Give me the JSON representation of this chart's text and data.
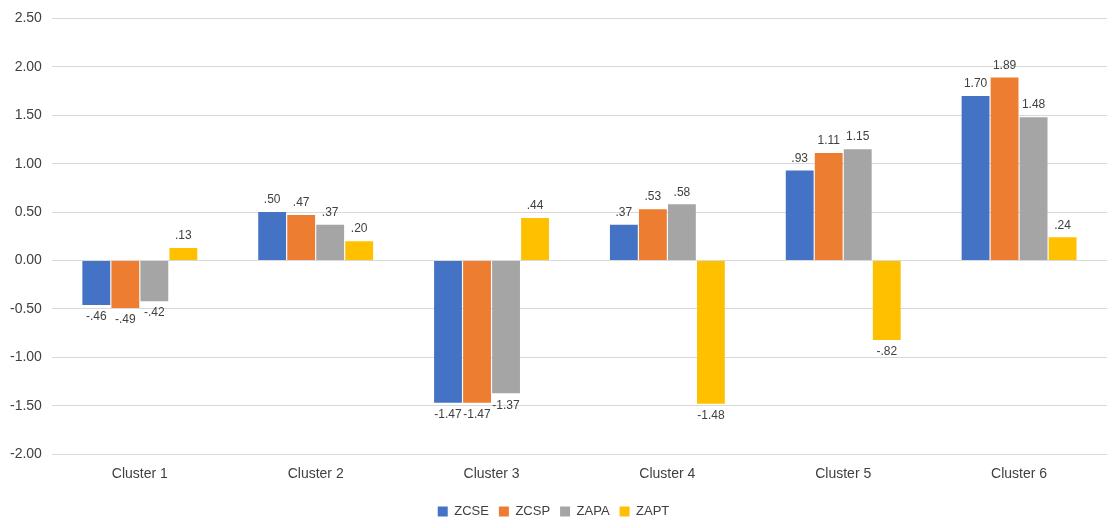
{
  "chart_data": {
    "type": "bar",
    "categories": [
      "Cluster 1",
      "Cluster 2",
      "Cluster 3",
      "Cluster 4",
      "Cluster 5",
      "Cluster 6"
    ],
    "series": [
      {
        "name": "ZCSE",
        "color": "#4472c4",
        "values": [
          -0.46,
          0.5,
          -1.47,
          0.37,
          0.93,
          1.7
        ],
        "value_labels": [
          "-.46",
          ".50",
          "-1.47",
          ".37",
          ".93",
          "1.70"
        ]
      },
      {
        "name": "ZCSP",
        "color": "#ed7d31",
        "values": [
          -0.49,
          0.47,
          -1.47,
          0.53,
          1.11,
          1.89
        ],
        "value_labels": [
          "-.49",
          ".47",
          "-1.47",
          ".53",
          "1.11",
          "1.89"
        ]
      },
      {
        "name": "ZAPA",
        "color": "#a5a5a5",
        "values": [
          -0.42,
          0.37,
          -1.37,
          0.58,
          1.15,
          1.48
        ],
        "value_labels": [
          "-.42",
          ".37",
          "-1.37",
          ".58",
          "1.15",
          "1.48"
        ]
      },
      {
        "name": "ZAPT",
        "color": "#ffc000",
        "values": [
          0.13,
          0.2,
          0.44,
          -1.48,
          -0.82,
          0.24
        ],
        "value_labels": [
          ".13",
          ".20",
          ".44",
          "-1.48",
          "-.82",
          ".24"
        ]
      }
    ],
    "ylim": [
      -2,
      2.5
    ],
    "yticks": [
      {
        "value": -2,
        "label": "-2.00"
      },
      {
        "value": -1.5,
        "label": "-1.50"
      },
      {
        "value": -1,
        "label": "-1.00"
      },
      {
        "value": -0.5,
        "label": "-0.50"
      },
      {
        "value": 0,
        "label": "0.00"
      },
      {
        "value": 0.5,
        "label": "0.50"
      },
      {
        "value": 1,
        "label": "1.00"
      },
      {
        "value": 1.5,
        "label": "1.50"
      },
      {
        "value": 2,
        "label": "2.00"
      },
      {
        "value": 2.5,
        "label": "2.50"
      }
    ],
    "grid": "y",
    "legend": "bottom"
  }
}
